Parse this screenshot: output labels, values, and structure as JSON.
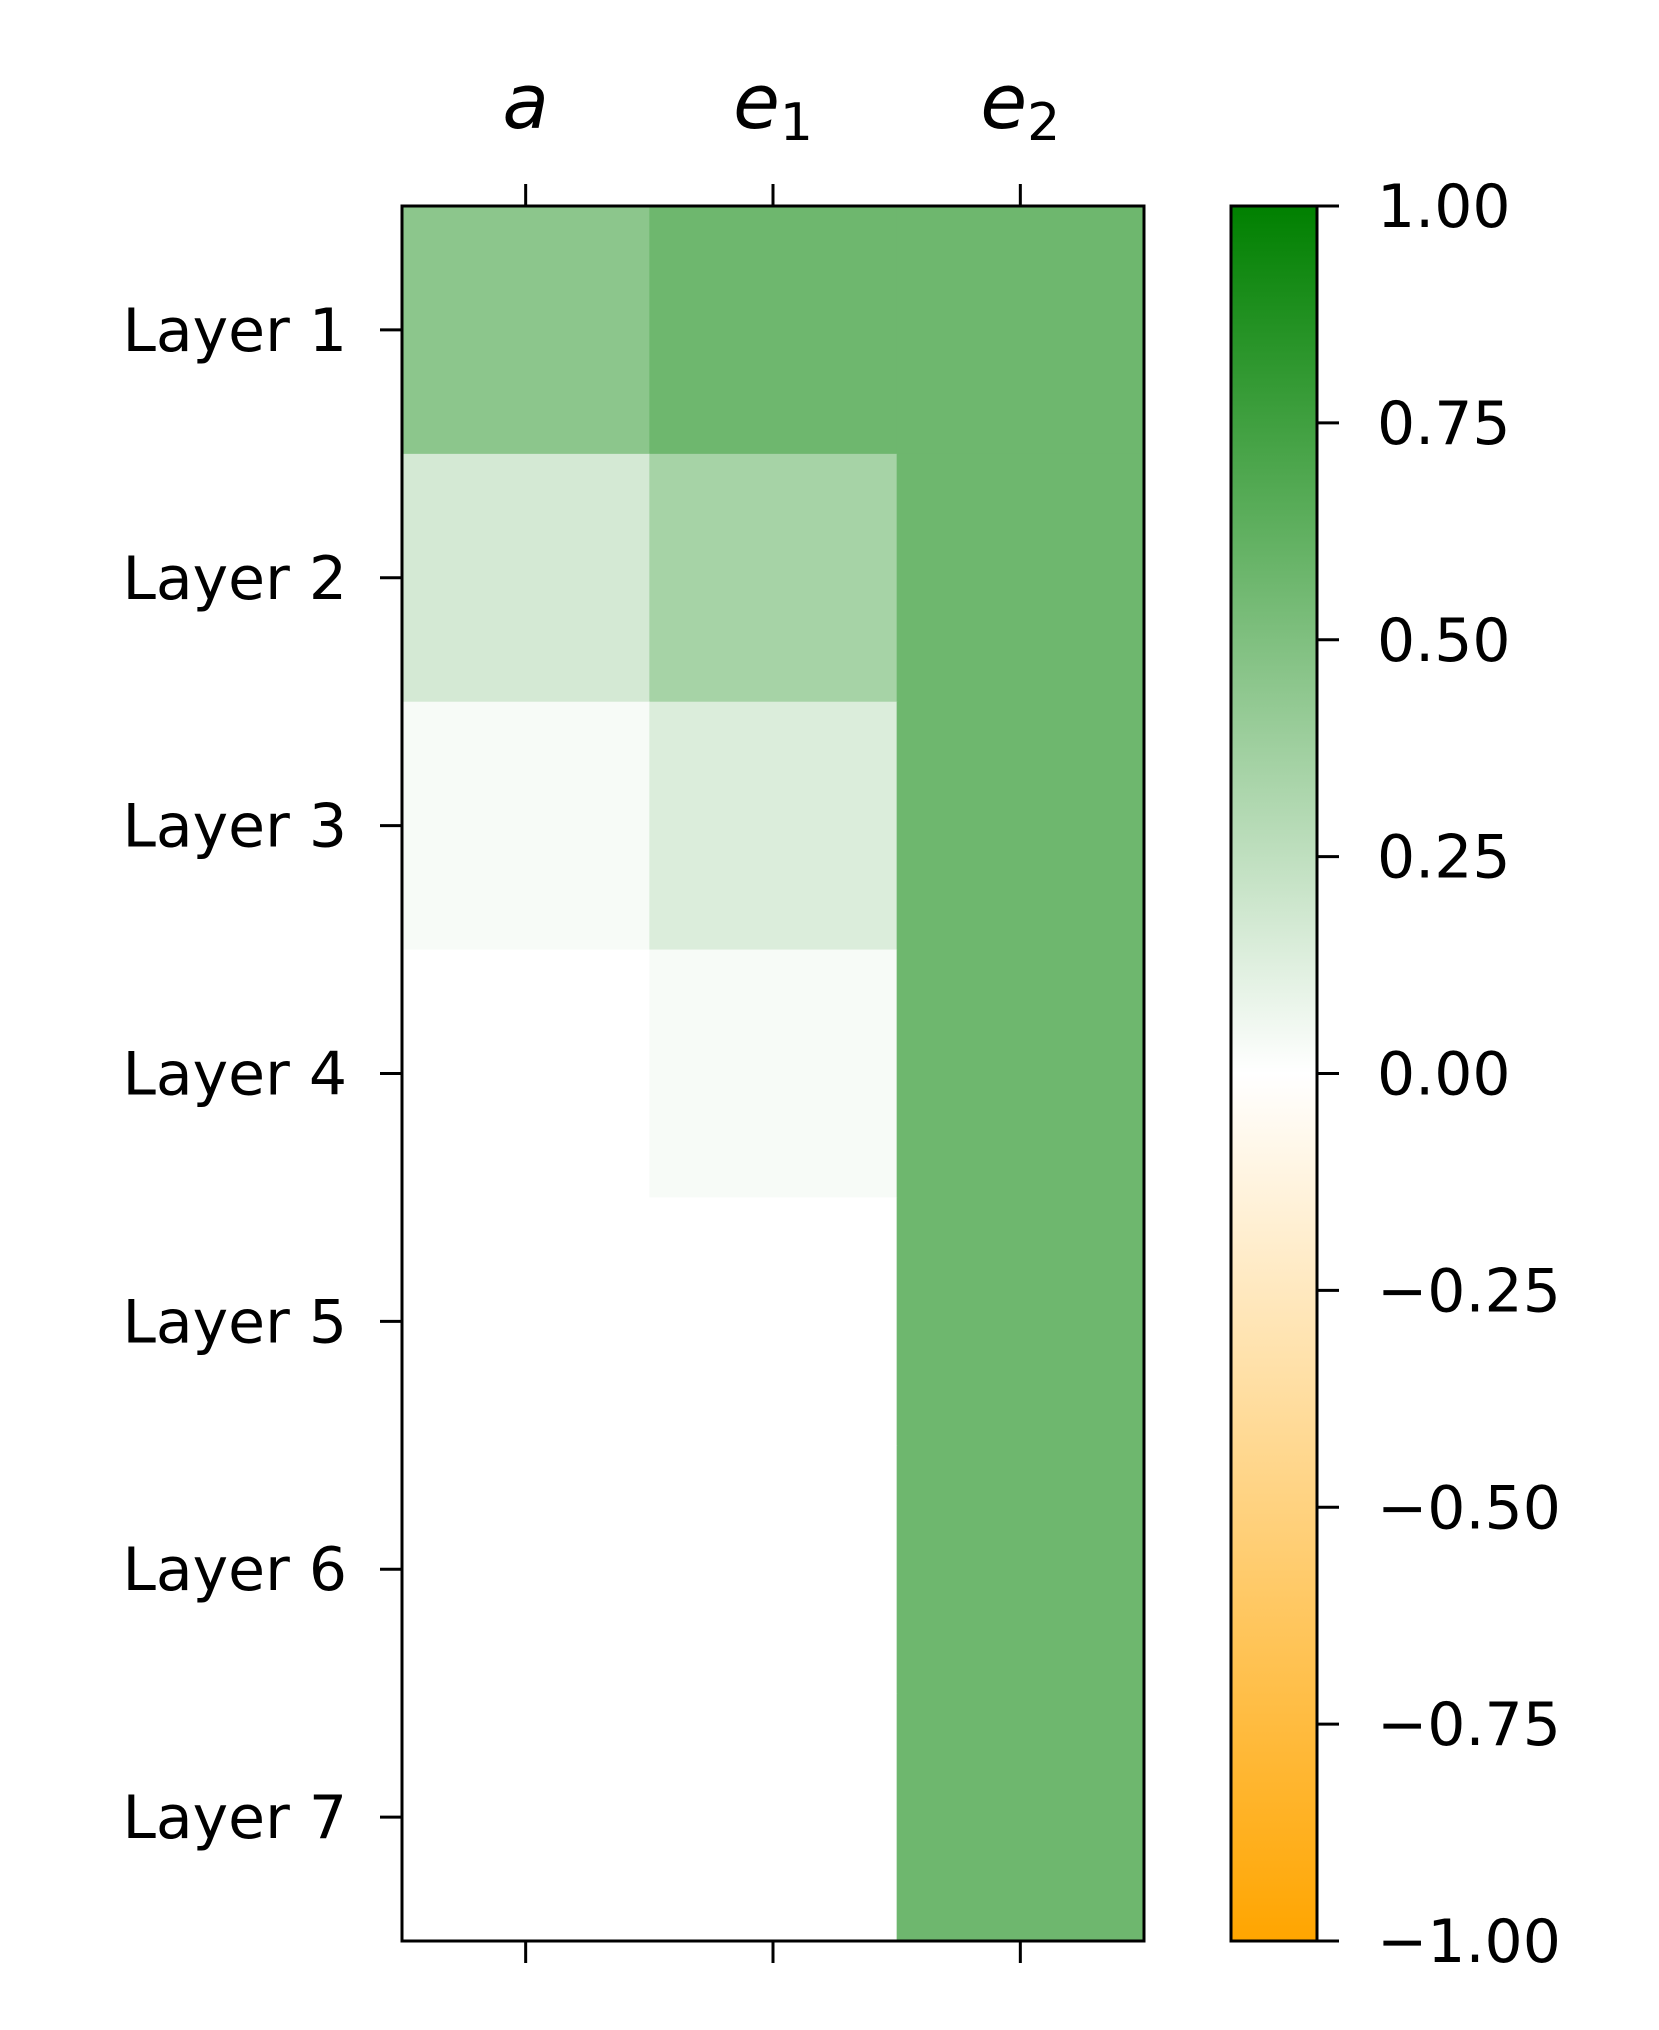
{
  "chart_data": {
    "type": "heatmap",
    "title": "",
    "columns": [
      {
        "base": "a",
        "sub": ""
      },
      {
        "base": "e",
        "sub": "1"
      },
      {
        "base": "e",
        "sub": "2"
      }
    ],
    "rows": [
      "Layer 1",
      "Layer 2",
      "Layer 3",
      "Layer 4",
      "Layer 5",
      "Layer 6",
      "Layer 7"
    ],
    "values": [
      [
        0.45,
        0.57,
        0.57
      ],
      [
        0.17,
        0.35,
        0.57
      ],
      [
        0.03,
        0.14,
        0.57
      ],
      [
        0.0,
        0.03,
        0.57
      ],
      [
        0.0,
        0.0,
        0.57
      ],
      [
        0.0,
        0.0,
        0.57
      ],
      [
        0.0,
        0.0,
        0.57
      ]
    ],
    "colorbar": {
      "vmin": -1.0,
      "vmax": 1.0,
      "ticks": [
        1.0,
        0.75,
        0.5,
        0.25,
        0.0,
        -0.25,
        -0.5,
        -0.75,
        -1.0
      ],
      "tick_labels": [
        "1.00",
        "0.75",
        "0.50",
        "0.25",
        "0.00",
        "−0.25",
        "−0.50",
        "−0.75",
        "−1.00"
      ],
      "colors": {
        "min": "#ffa500",
        "mid": "#ffffff",
        "max": "#008000"
      }
    }
  }
}
